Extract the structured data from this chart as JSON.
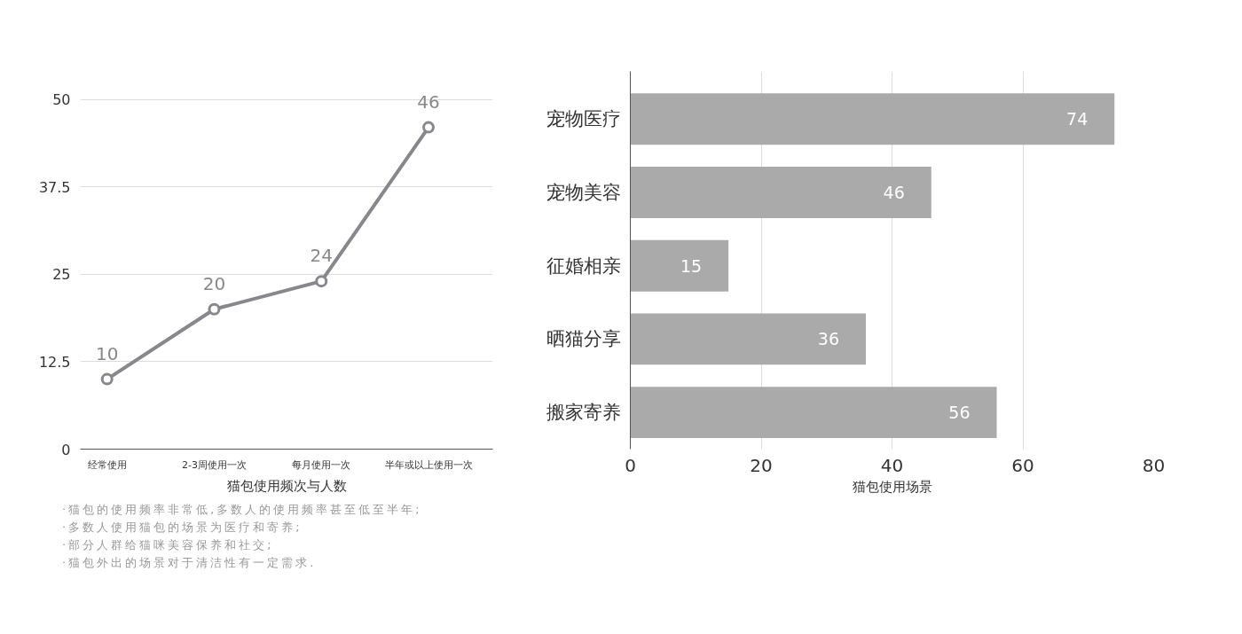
{
  "chart_data": [
    {
      "type": "line",
      "categories": [
        "经常使用",
        "2-3周使用一次",
        "每月使用一次",
        "半年或以上使用一次"
      ],
      "series": [
        {
          "color": "#87878c",
          "values": [
            10,
            20,
            24,
            46
          ]
        }
      ],
      "ylim": [
        0,
        50
      ],
      "yticks": [
        0,
        12.5,
        25,
        37.5,
        50
      ],
      "grid": "y",
      "marker": "circle",
      "line_style": "solid",
      "data_labels": true,
      "xlabel": "猫包使用频次与人数",
      "annotations": [
        "·猫包的使用频率非常低,多数人的使用频率甚至低至半年;",
        "·多数人使用猫包的场景为医疗和寄养;",
        "·部分人群给猫咪美容保养和社交;",
        "·猫包外出的场景对于清洁性有一定需求."
      ]
    },
    {
      "type": "bar",
      "orientation": "horizontal",
      "categories": [
        "宠物医疗",
        "宠物美容",
        "征婚相亲",
        "晒猫分享",
        "搬家寄养"
      ],
      "series": [
        {
          "color": "#aaaaaa",
          "values": [
            74,
            46,
            15,
            36,
            56
          ]
        }
      ],
      "xlim": [
        0,
        80
      ],
      "xticks": [
        0,
        20,
        40,
        60,
        80
      ],
      "grid": "x",
      "data_labels": true,
      "xlabel": "猫包使用场景"
    }
  ]
}
